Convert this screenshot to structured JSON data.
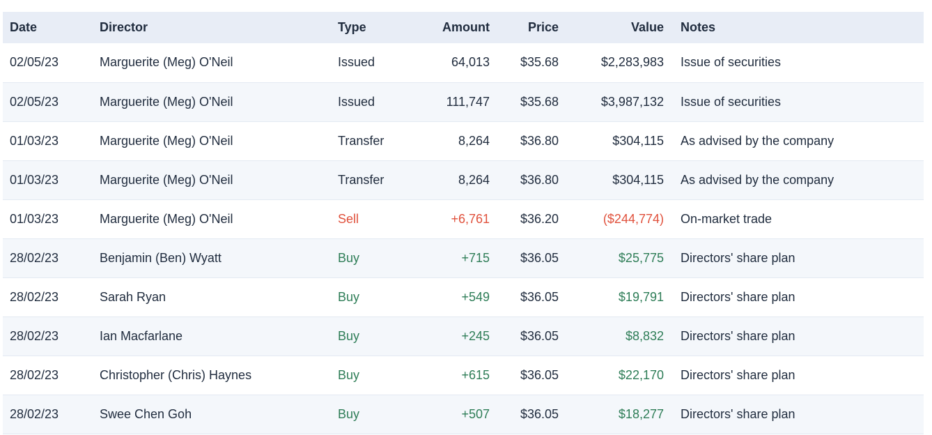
{
  "colors": {
    "header_bg": "#e8edf6",
    "stripe_bg": "#f4f7fb",
    "row_border": "#e3e9f2",
    "text": "#1f2b3d",
    "buy_green": "#2e7d57",
    "sell_red": "#e0503b",
    "page_bg": "#ffffff"
  },
  "table": {
    "columns": [
      {
        "id": "date",
        "label": "Date",
        "align": "left"
      },
      {
        "id": "director",
        "label": "Director",
        "align": "left"
      },
      {
        "id": "type",
        "label": "Type",
        "align": "left"
      },
      {
        "id": "amount",
        "label": "Amount",
        "align": "right"
      },
      {
        "id": "price",
        "label": "Price",
        "align": "right"
      },
      {
        "id": "value",
        "label": "Value",
        "align": "right"
      },
      {
        "id": "notes",
        "label": "Notes",
        "align": "left"
      }
    ],
    "rows": [
      {
        "date": "02/05/23",
        "director": "Marguerite (Meg) O'Neil",
        "type": "Issued",
        "amount": "64,013",
        "price": "$35.68",
        "value": "$2,283,983",
        "notes": "Issue of securities",
        "sentiment": "neutral"
      },
      {
        "date": "02/05/23",
        "director": "Marguerite (Meg) O'Neil",
        "type": "Issued",
        "amount": "111,747",
        "price": "$35.68",
        "value": "$3,987,132",
        "notes": "Issue of securities",
        "sentiment": "neutral"
      },
      {
        "date": "01/03/23",
        "director": "Marguerite (Meg) O'Neil",
        "type": "Transfer",
        "amount": "8,264",
        "price": "$36.80",
        "value": "$304,115",
        "notes": "As advised by the company",
        "sentiment": "neutral"
      },
      {
        "date": "01/03/23",
        "director": "Marguerite (Meg) O'Neil",
        "type": "Transfer",
        "amount": "8,264",
        "price": "$36.80",
        "value": "$304,115",
        "notes": "As advised by the company",
        "sentiment": "neutral"
      },
      {
        "date": "01/03/23",
        "director": "Marguerite (Meg) O'Neil",
        "type": "Sell",
        "amount": "+6,761",
        "price": "$36.20",
        "value": "($244,774)",
        "notes": "On-market trade",
        "sentiment": "sell"
      },
      {
        "date": "28/02/23",
        "director": "Benjamin (Ben) Wyatt",
        "type": "Buy",
        "amount": "+715",
        "price": "$36.05",
        "value": "$25,775",
        "notes": "Directors' share plan",
        "sentiment": "buy"
      },
      {
        "date": "28/02/23",
        "director": "Sarah Ryan",
        "type": "Buy",
        "amount": "+549",
        "price": "$36.05",
        "value": "$19,791",
        "notes": "Directors' share plan",
        "sentiment": "buy"
      },
      {
        "date": "28/02/23",
        "director": "Ian Macfarlane",
        "type": "Buy",
        "amount": "+245",
        "price": "$36.05",
        "value": "$8,832",
        "notes": "Directors' share plan",
        "sentiment": "buy"
      },
      {
        "date": "28/02/23",
        "director": "Christopher (Chris) Haynes",
        "type": "Buy",
        "amount": "+615",
        "price": "$36.05",
        "value": "$22,170",
        "notes": "Directors' share plan",
        "sentiment": "buy"
      },
      {
        "date": "28/02/23",
        "director": "Swee Chen Goh",
        "type": "Buy",
        "amount": "+507",
        "price": "$36.05",
        "value": "$18,277",
        "notes": "Directors' share plan",
        "sentiment": "buy"
      }
    ]
  }
}
